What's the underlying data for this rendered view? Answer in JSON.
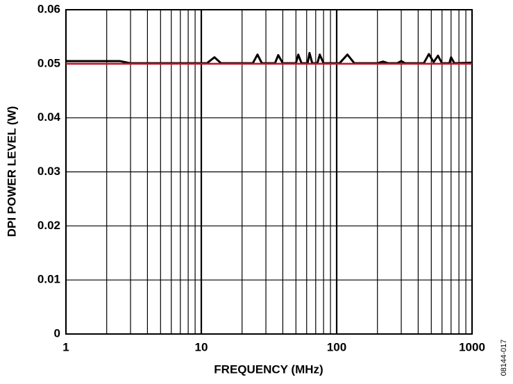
{
  "chart_data": {
    "type": "line",
    "x_label": "FREQUENCY (MHz)",
    "y_label": "DPI POWER LEVEL (W)",
    "figure_id": "08144-017",
    "xscale": "log",
    "grid": true,
    "xlim": [
      1,
      1000
    ],
    "xticks": [
      1,
      10,
      100,
      1000
    ],
    "ylim": [
      0,
      0.06
    ],
    "yticks": [
      0,
      0.01,
      0.02,
      0.03,
      0.04,
      0.05,
      0.06
    ],
    "series": [
      {
        "color": "#000000",
        "x": [
          1,
          2.5,
          3,
          11,
          12.5,
          14,
          24,
          26,
          28,
          35,
          37,
          40,
          50,
          52,
          55,
          61,
          63,
          66,
          72,
          75,
          80,
          105,
          120,
          135,
          200,
          220,
          240,
          280,
          300,
          320,
          440,
          480,
          520,
          560,
          600,
          680,
          700,
          740,
          1000
        ],
        "values": [
          0.0505,
          0.0505,
          0.0501,
          0.0501,
          0.0512,
          0.0501,
          0.0501,
          0.0517,
          0.0501,
          0.0501,
          0.0516,
          0.0501,
          0.0501,
          0.0517,
          0.0501,
          0.0501,
          0.052,
          0.0501,
          0.0501,
          0.0517,
          0.0501,
          0.0501,
          0.0517,
          0.0501,
          0.0501,
          0.0504,
          0.0501,
          0.0501,
          0.0505,
          0.0501,
          0.0501,
          0.0518,
          0.0503,
          0.0515,
          0.0501,
          0.0501,
          0.0512,
          0.0501,
          0.0502
        ]
      },
      {
        "color": "#c8102e",
        "x": [
          1,
          1000
        ],
        "values": [
          0.05,
          0.05
        ]
      }
    ]
  }
}
